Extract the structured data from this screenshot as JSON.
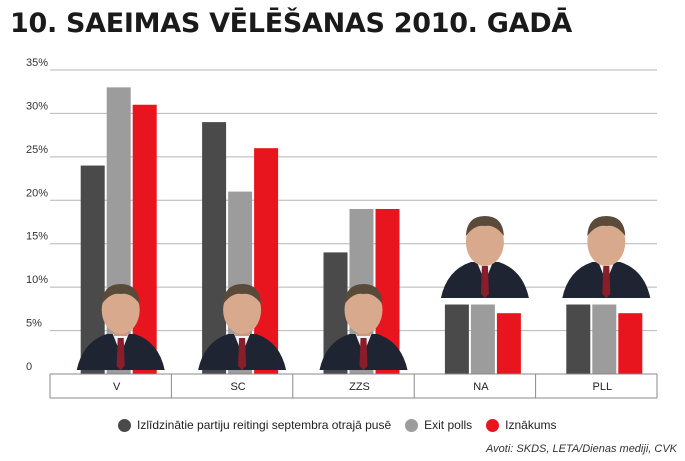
{
  "title": "10. SAEIMAS VĒLĒŠANAS 2010. GADĀ",
  "chart_data": {
    "type": "bar",
    "categories": [
      "V",
      "SC",
      "ZZS",
      "NA",
      "PLL"
    ],
    "series": [
      {
        "name": "Izlīdzinātie partiju reitingi septembra otrajā pusē",
        "color": "#4a4a4a",
        "values": [
          24,
          29,
          14,
          8,
          8
        ]
      },
      {
        "name": "Exit polls",
        "color": "#9c9c9c",
        "values": [
          33,
          21,
          19,
          8,
          8
        ]
      },
      {
        "name": "Iznākums",
        "color": "#e8141e",
        "values": [
          31,
          26,
          19,
          7,
          7
        ]
      }
    ],
    "ylim": [
      0,
      35
    ],
    "yticks": [
      "0",
      "5%",
      "10%",
      "15%",
      "20%",
      "25%",
      "30%",
      "35%"
    ],
    "grid": true,
    "legend": "bottom"
  },
  "source": "Avoti: SKDS, LETA/Dienas mediji, CVK",
  "photo_icons": [
    "politician-photo-icon",
    "politician-photo-icon",
    "politician-photo-icon",
    "politician-photo-icon",
    "politician-photo-icon"
  ]
}
